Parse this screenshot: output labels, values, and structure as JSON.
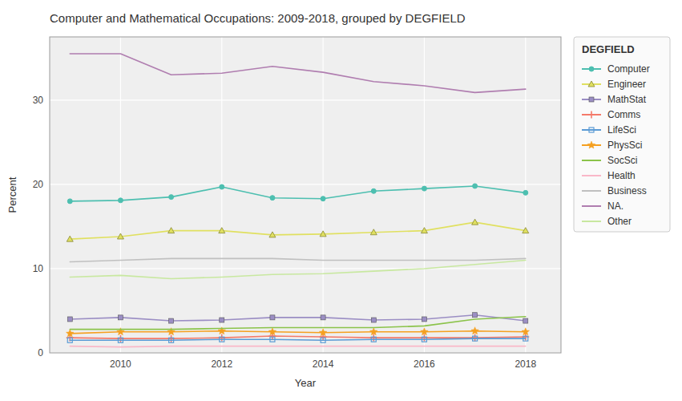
{
  "chart_data": {
    "type": "line",
    "title": "Computer and Mathematical Occupations: 2009-2018, grouped by DEGFIELD",
    "xlabel": "Year",
    "ylabel": "Percent",
    "legend_title": "DEGFIELD",
    "legend": "right",
    "grid": true,
    "x": [
      2009,
      2010,
      2011,
      2012,
      2013,
      2014,
      2015,
      2016,
      2017,
      2018
    ],
    "xlim": [
      2008.6,
      2018.7
    ],
    "xticks": [
      2010,
      2012,
      2014,
      2016,
      2018
    ],
    "ylim": [
      0,
      37.5
    ],
    "yticks": [
      0,
      10,
      20,
      30
    ],
    "series": [
      {
        "name": "Computer",
        "color": "#4dbfb0",
        "marker": "circle",
        "values": [
          18.0,
          18.1,
          18.5,
          19.7,
          18.4,
          18.3,
          19.2,
          19.5,
          19.8,
          19.0
        ]
      },
      {
        "name": "Engineer",
        "color": "#e0e060",
        "marker": "triangle",
        "values": [
          13.5,
          13.8,
          14.5,
          14.5,
          14.0,
          14.1,
          14.3,
          14.5,
          15.5,
          14.5
        ]
      },
      {
        "name": "MathStat",
        "color": "#9b8ec4",
        "marker": "square",
        "values": [
          4.0,
          4.2,
          3.8,
          3.9,
          4.2,
          4.2,
          3.9,
          4.0,
          4.5,
          3.8
        ]
      },
      {
        "name": "Comms",
        "color": "#f47a6a",
        "marker": "plus",
        "values": [
          1.8,
          1.7,
          1.7,
          1.8,
          2.0,
          1.9,
          1.8,
          1.8,
          1.8,
          1.9
        ]
      },
      {
        "name": "LifeSci",
        "color": "#5b9bd5",
        "marker": "open-square",
        "values": [
          1.5,
          1.5,
          1.5,
          1.6,
          1.6,
          1.5,
          1.6,
          1.6,
          1.7,
          1.7
        ]
      },
      {
        "name": "PhysSci",
        "color": "#f5a020",
        "marker": "star",
        "values": [
          2.3,
          2.5,
          2.5,
          2.6,
          2.5,
          2.4,
          2.5,
          2.5,
          2.6,
          2.5
        ]
      },
      {
        "name": "SocSci",
        "color": "#8bc34a",
        "values": [
          2.8,
          2.8,
          2.8,
          2.9,
          3.0,
          3.0,
          3.0,
          3.2,
          4.0,
          4.3
        ]
      },
      {
        "name": "Health",
        "color": "#f9b8c8",
        "values": [
          0.8,
          0.7,
          0.8,
          0.8,
          0.8,
          0.8,
          0.8,
          0.8,
          0.8,
          0.8
        ]
      },
      {
        "name": "Business",
        "color": "#c0c0c0",
        "values": [
          10.8,
          11.0,
          11.2,
          11.2,
          11.2,
          11.0,
          11.0,
          11.0,
          11.0,
          11.2
        ]
      },
      {
        "name": "NA.",
        "color": "#b07eb0",
        "values": [
          35.5,
          35.5,
          33.0,
          33.2,
          34.0,
          33.3,
          32.2,
          31.7,
          30.9,
          31.3
        ]
      },
      {
        "name": "Other",
        "color": "#c8e8a0",
        "values": [
          9.0,
          9.2,
          8.8,
          9.0,
          9.3,
          9.4,
          9.7,
          10.0,
          10.5,
          11.0
        ]
      }
    ]
  }
}
